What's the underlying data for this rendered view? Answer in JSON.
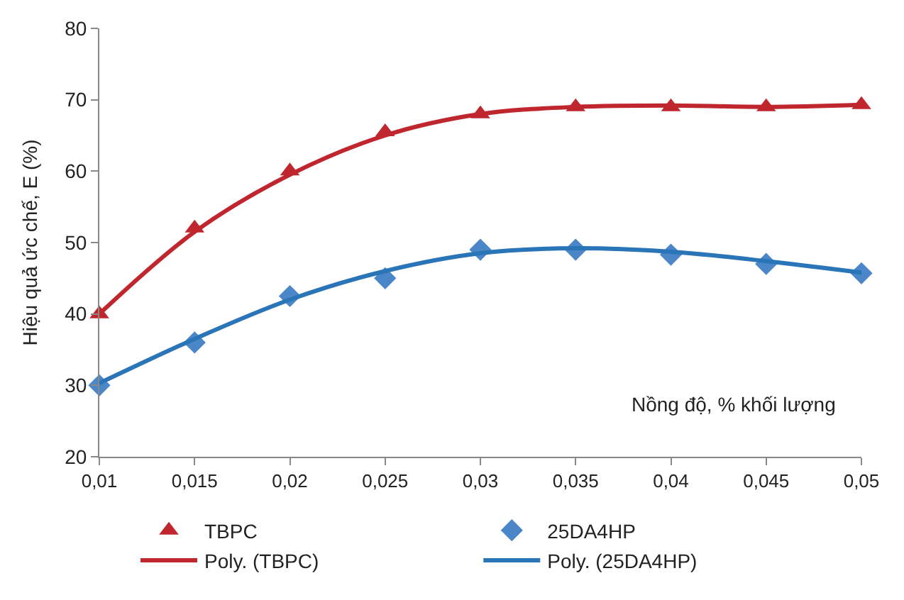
{
  "chart_data": {
    "type": "scatter",
    "xlabel": "Nồng độ, % khối lượng",
    "ylabel": "Hiệu quả ức chế, E (%)",
    "x": [
      0.01,
      0.015,
      0.02,
      0.025,
      0.03,
      0.035,
      0.04,
      0.045,
      0.05
    ],
    "series": [
      {
        "name": "TBPC",
        "color": "#c0262d",
        "marker": "triangle",
        "values": [
          40,
          52,
          60,
          65.5,
          68,
          69,
          69,
          69,
          69.3
        ]
      },
      {
        "name": "25DA4HP",
        "color": "#4a86c8",
        "marker": "diamond",
        "values": [
          30,
          36,
          42.5,
          45,
          49,
          49,
          48.3,
          47,
          45.7
        ]
      },
      {
        "name": "Poly. (TBPC)",
        "type": "line",
        "color": "#c0262d",
        "line_style": "solid",
        "values": [
          40,
          51.5,
          59.5,
          65,
          68,
          69,
          69.2,
          69,
          69.3
        ]
      },
      {
        "name": "Poly. (25DA4HP)",
        "type": "line",
        "color": "#2a74b8",
        "line_style": "solid",
        "values": [
          30.3,
          36.5,
          42,
          46,
          48.5,
          49.2,
          48.7,
          47.4,
          45.8
        ]
      }
    ],
    "xlim": [
      0.01,
      0.05
    ],
    "xticks": [
      {
        "value": 0.01,
        "label": "0,01"
      },
      {
        "value": 0.015,
        "label": "0,015"
      },
      {
        "value": 0.02,
        "label": "0,02"
      },
      {
        "value": 0.025,
        "label": "0,025"
      },
      {
        "value": 0.03,
        "label": "0,03"
      },
      {
        "value": 0.035,
        "label": "0,035"
      },
      {
        "value": 0.04,
        "label": "0,04"
      },
      {
        "value": 0.045,
        "label": "0,045"
      },
      {
        "value": 0.05,
        "label": "0,05"
      }
    ],
    "ylim": [
      20,
      80
    ],
    "yticks": [
      20,
      30,
      40,
      50,
      60,
      70,
      80
    ],
    "legend": "bottom"
  }
}
